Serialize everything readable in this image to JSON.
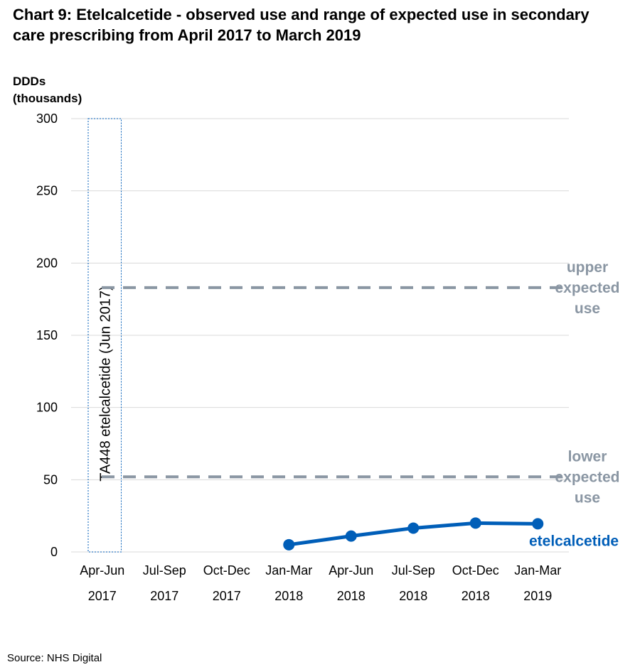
{
  "chart_data": {
    "type": "line",
    "title": "Chart 9: Etelcalcetide - observed use and range of expected use in secondary care prescribing from April 2017 to March 2019",
    "ylabel_line1": "DDDs",
    "ylabel_line2": "(thousands)",
    "ylim": [
      0,
      300
    ],
    "yticks": [
      "0",
      "50",
      "100",
      "150",
      "200",
      "250",
      "300"
    ],
    "grid": true,
    "categories": [
      {
        "period": "Apr-Jun",
        "year": "2017"
      },
      {
        "period": "Jul-Sep",
        "year": "2017"
      },
      {
        "period": "Oct-Dec",
        "year": "2017"
      },
      {
        "period": "Jan-Mar",
        "year": "2018"
      },
      {
        "period": "Apr-Jun",
        "year": "2018"
      },
      {
        "period": "Jul-Sep",
        "year": "2018"
      },
      {
        "period": "Oct-Dec",
        "year": "2018"
      },
      {
        "period": "Jan-Mar",
        "year": "2019"
      }
    ],
    "series": [
      {
        "name": "etelcalcetide",
        "color": "#005eb8",
        "values": [
          null,
          null,
          null,
          5,
          11,
          16.5,
          20,
          19.5
        ]
      }
    ],
    "reference_lines": [
      {
        "value": 183,
        "label_lines": [
          "upper",
          "expected",
          "use"
        ],
        "color": "#8a96a3"
      },
      {
        "value": 52,
        "label_lines": [
          "lower",
          "expected",
          "use"
        ],
        "color": "#8a96a3"
      }
    ],
    "highlight_box": {
      "category_index": 0,
      "label": "TA448 etelcalcetide (Jun 2017)"
    }
  },
  "source": "Source: NHS Digital"
}
